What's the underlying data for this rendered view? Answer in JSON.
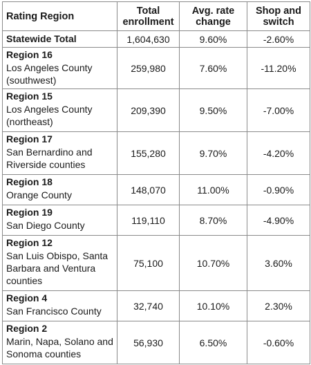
{
  "table": {
    "headers": {
      "region": "Rating Region",
      "enrollment": "Total enrollment",
      "rate": "Avg. rate change",
      "shop": "Shop and switch"
    },
    "statewide": {
      "label": "Statewide Total",
      "enrollment": "1,604,630",
      "rate": "9.60%",
      "shop": "-2.60%"
    },
    "rows": [
      {
        "region": "Region 16",
        "area": "Los Angeles County (southwest)",
        "enrollment": "259,980",
        "rate": "7.60%",
        "shop": "-11.20%"
      },
      {
        "region": "Region 15",
        "area": "Los Angeles County (northeast)",
        "enrollment": "209,390",
        "rate": "9.50%",
        "shop": "-7.00%"
      },
      {
        "region": "Region 17",
        "area": "San Bernardino and Riverside counties",
        "enrollment": "155,280",
        "rate": "9.70%",
        "shop": "-4.20%"
      },
      {
        "region": "Region 18",
        "area": "Orange County",
        "enrollment": "148,070",
        "rate": "11.00%",
        "shop": "-0.90%"
      },
      {
        "region": "Region 19",
        "area": "San Diego County",
        "enrollment": "119,110",
        "rate": "8.70%",
        "shop": "-4.90%"
      },
      {
        "region": "Region 12",
        "area": "San Luis Obispo, Santa Barbara and Ventura counties",
        "enrollment": "75,100",
        "rate": "10.70%",
        "shop": "3.60%"
      },
      {
        "region": "Region 4",
        "area": "San Francisco County",
        "enrollment": "32,740",
        "rate": "10.10%",
        "shop": "2.30%"
      },
      {
        "region": "Region 2",
        "area": "Marin, Napa, Solano and Sonoma counties",
        "enrollment": "56,930",
        "rate": "6.50%",
        "shop": "-0.60%"
      }
    ]
  }
}
